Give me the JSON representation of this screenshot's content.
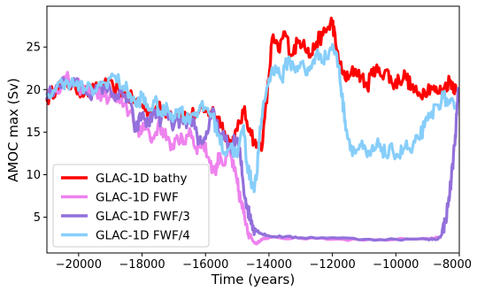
{
  "chart_data": {
    "type": "line",
    "xlabel": "Time (years)",
    "ylabel": "AMOC max (Sv)",
    "xlim": [
      -21000,
      -8000
    ],
    "ylim": [
      0.8,
      29.8
    ],
    "xticks": [
      -20000,
      -18000,
      -16000,
      -14000,
      -12000,
      -10000,
      -8000
    ],
    "xtick_labels": [
      "−20000",
      "−18000",
      "−16000",
      "−14000",
      "−12000",
      "−10000",
      "−8000"
    ],
    "yticks": [
      5,
      10,
      15,
      20,
      25
    ],
    "ytick_labels": [
      "5",
      "10",
      "15",
      "20",
      "25"
    ],
    "legend_position": "lower-left",
    "grid": false,
    "series": [
      {
        "name": "GLAC-1D bathy",
        "color": "#ff0000",
        "points": [
          [
            -21000,
            18.8
          ],
          [
            -20700,
            20.3
          ],
          [
            -20400,
            20.8
          ],
          [
            -20100,
            20.2
          ],
          [
            -19800,
            19.7
          ],
          [
            -19500,
            19.9
          ],
          [
            -19200,
            20.6
          ],
          [
            -18900,
            20.2
          ],
          [
            -18600,
            19.4
          ],
          [
            -18300,
            18.9
          ],
          [
            -18000,
            18.2
          ],
          [
            -17800,
            17.5
          ],
          [
            -17500,
            17.8
          ],
          [
            -17200,
            17.4
          ],
          [
            -16900,
            17.1
          ],
          [
            -16600,
            16.9
          ],
          [
            -16300,
            17.2
          ],
          [
            -16000,
            17.4
          ],
          [
            -15800,
            17.5
          ],
          [
            -15600,
            16.8
          ],
          [
            -15400,
            15.1
          ],
          [
            -15200,
            13.5
          ],
          [
            -15000,
            15.2
          ],
          [
            -14800,
            17.5
          ],
          [
            -14600,
            15.4
          ],
          [
            -14400,
            13.2
          ],
          [
            -14200,
            13.8
          ],
          [
            -14000,
            21.5
          ],
          [
            -13900,
            26.0
          ],
          [
            -13700,
            24.5
          ],
          [
            -13500,
            26.8
          ],
          [
            -13300,
            24.1
          ],
          [
            -13100,
            25.5
          ],
          [
            -12900,
            25.8
          ],
          [
            -12700,
            23.8
          ],
          [
            -12500,
            25.6
          ],
          [
            -12300,
            26.4
          ],
          [
            -12100,
            27.4
          ],
          [
            -12000,
            28.1
          ],
          [
            -11900,
            25.4
          ],
          [
            -11700,
            22.0
          ],
          [
            -11500,
            21.2
          ],
          [
            -11300,
            22.4
          ],
          [
            -11100,
            21.6
          ],
          [
            -10900,
            20.2
          ],
          [
            -10700,
            22.6
          ],
          [
            -10500,
            21.8
          ],
          [
            -10300,
            22.3
          ],
          [
            -10100,
            20.6
          ],
          [
            -9900,
            21.1
          ],
          [
            -9700,
            21.7
          ],
          [
            -9500,
            20.2
          ],
          [
            -9300,
            19.3
          ],
          [
            -9100,
            19.9
          ],
          [
            -8900,
            20.4
          ],
          [
            -8700,
            19.6
          ],
          [
            -8500,
            20.1
          ],
          [
            -8300,
            21.1
          ],
          [
            -8200,
            20.6
          ],
          [
            -8100,
            19.9
          ]
        ]
      },
      {
        "name": "GLAC-1D FWF",
        "color": "#ee82ee",
        "points": [
          [
            -21000,
            19.5
          ],
          [
            -20700,
            20.0
          ],
          [
            -20400,
            21.3
          ],
          [
            -20100,
            20.5
          ],
          [
            -19800,
            20.0
          ],
          [
            -19500,
            19.8
          ],
          [
            -19200,
            19.2
          ],
          [
            -18900,
            19.0
          ],
          [
            -18600,
            18.0
          ],
          [
            -18300,
            17.1
          ],
          [
            -18100,
            14.5
          ],
          [
            -17900,
            16.4
          ],
          [
            -17700,
            13.8
          ],
          [
            -17500,
            15.8
          ],
          [
            -17300,
            15.1
          ],
          [
            -17100,
            12.9
          ],
          [
            -16900,
            14.6
          ],
          [
            -16700,
            13.6
          ],
          [
            -16500,
            15.4
          ],
          [
            -16300,
            13.2
          ],
          [
            -16100,
            13.8
          ],
          [
            -15900,
            12.0
          ],
          [
            -15700,
            10.2
          ],
          [
            -15550,
            12.5
          ],
          [
            -15400,
            11.1
          ],
          [
            -15250,
            13.0
          ],
          [
            -15100,
            10.5
          ],
          [
            -15000,
            9.0
          ],
          [
            -14900,
            7.0
          ],
          [
            -14800,
            5.5
          ],
          [
            -14700,
            4.2
          ],
          [
            -14600,
            3.0
          ],
          [
            -14500,
            2.2
          ],
          [
            -14400,
            1.9
          ],
          [
            -14300,
            2.2
          ],
          [
            -14200,
            2.5
          ],
          [
            -14000,
            2.6
          ],
          [
            -13000,
            2.5
          ],
          [
            -12000,
            2.4
          ],
          [
            -11000,
            2.3
          ],
          [
            -10000,
            2.4
          ],
          [
            -9000,
            2.5
          ],
          [
            -8600,
            2.6
          ]
        ]
      },
      {
        "name": "GLAC-1D FWF/3",
        "color": "#9370db",
        "points": [
          [
            -21000,
            19.0
          ],
          [
            -20700,
            20.5
          ],
          [
            -20400,
            21.0
          ],
          [
            -20100,
            20.6
          ],
          [
            -19800,
            19.9
          ],
          [
            -19500,
            19.6
          ],
          [
            -19200,
            20.4
          ],
          [
            -18900,
            19.5
          ],
          [
            -18600,
            19.2
          ],
          [
            -18400,
            18.6
          ],
          [
            -18200,
            15.1
          ],
          [
            -18000,
            17.2
          ],
          [
            -17800,
            15.8
          ],
          [
            -17600,
            17.6
          ],
          [
            -17400,
            16.4
          ],
          [
            -17200,
            17.2
          ],
          [
            -17000,
            15.7
          ],
          [
            -16800,
            16.4
          ],
          [
            -16600,
            15.5
          ],
          [
            -16400,
            16.6
          ],
          [
            -16200,
            13.9
          ],
          [
            -16000,
            14.2
          ],
          [
            -15800,
            17.4
          ],
          [
            -15600,
            15.2
          ],
          [
            -15400,
            14.1
          ],
          [
            -15200,
            13.2
          ],
          [
            -15000,
            14.3
          ],
          [
            -14900,
            12.0
          ],
          [
            -14800,
            8.5
          ],
          [
            -14700,
            6.5
          ],
          [
            -14600,
            5.0
          ],
          [
            -14500,
            4.0
          ],
          [
            -14400,
            3.5
          ],
          [
            -14300,
            3.2
          ],
          [
            -14200,
            3.0
          ],
          [
            -14000,
            2.8
          ],
          [
            -13500,
            2.7
          ],
          [
            -13000,
            2.6
          ],
          [
            -12000,
            2.6
          ],
          [
            -11000,
            2.4
          ],
          [
            -10000,
            2.4
          ],
          [
            -9000,
            2.4
          ],
          [
            -8700,
            2.4
          ],
          [
            -8550,
            3.0
          ],
          [
            -8450,
            4.5
          ],
          [
            -8350,
            6.5
          ],
          [
            -8250,
            9.5
          ],
          [
            -8150,
            13.5
          ],
          [
            -8080,
            17.0
          ],
          [
            -8030,
            19.8
          ]
        ]
      },
      {
        "name": "GLAC-1D FWF/4",
        "color": "#87cefa",
        "points": [
          [
            -21000,
            19.4
          ],
          [
            -20700,
            20.2
          ],
          [
            -20400,
            21.1
          ],
          [
            -20100,
            20.5
          ],
          [
            -19800,
            20.1
          ],
          [
            -19500,
            19.9
          ],
          [
            -19200,
            20.8
          ],
          [
            -18900,
            21.6
          ],
          [
            -18600,
            20.4
          ],
          [
            -18400,
            19.6
          ],
          [
            -18200,
            18.1
          ],
          [
            -18000,
            19.2
          ],
          [
            -17800,
            17.6
          ],
          [
            -17600,
            18.6
          ],
          [
            -17400,
            17.0
          ],
          [
            -17200,
            17.8
          ],
          [
            -17000,
            16.9
          ],
          [
            -16800,
            17.8
          ],
          [
            -16600,
            16.4
          ],
          [
            -16400,
            17.2
          ],
          [
            -16200,
            17.6
          ],
          [
            -16000,
            17.9
          ],
          [
            -15800,
            17.1
          ],
          [
            -15600,
            14.8
          ],
          [
            -15400,
            12.6
          ],
          [
            -15200,
            13.4
          ],
          [
            -15000,
            12.1
          ],
          [
            -14800,
            15.8
          ],
          [
            -14700,
            11.5
          ],
          [
            -14600,
            9.8
          ],
          [
            -14500,
            8.6
          ],
          [
            -14400,
            9.4
          ],
          [
            -14300,
            14.2
          ],
          [
            -14200,
            17.6
          ],
          [
            -14000,
            21.3
          ],
          [
            -13800,
            22.8
          ],
          [
            -13600,
            21.2
          ],
          [
            -13400,
            23.6
          ],
          [
            -13200,
            22.4
          ],
          [
            -13000,
            23.2
          ],
          [
            -12800,
            21.7
          ],
          [
            -12600,
            23.5
          ],
          [
            -12400,
            24.2
          ],
          [
            -12200,
            23.6
          ],
          [
            -12000,
            25.3
          ],
          [
            -11800,
            22.8
          ],
          [
            -11700,
            19.2
          ],
          [
            -11600,
            16.4
          ],
          [
            -11500,
            14.2
          ],
          [
            -11300,
            12.6
          ],
          [
            -11100,
            13.4
          ],
          [
            -10900,
            12.1
          ],
          [
            -10700,
            12.8
          ],
          [
            -10500,
            13.6
          ],
          [
            -10300,
            12.2
          ],
          [
            -10100,
            12.9
          ],
          [
            -9900,
            12.3
          ],
          [
            -9700,
            13.4
          ],
          [
            -9500,
            12.6
          ],
          [
            -9300,
            14.3
          ],
          [
            -9100,
            15.6
          ],
          [
            -8900,
            16.9
          ],
          [
            -8700,
            18.2
          ],
          [
            -8500,
            19.1
          ],
          [
            -8300,
            18.4
          ],
          [
            -8150,
            17.8
          ]
        ]
      }
    ]
  }
}
